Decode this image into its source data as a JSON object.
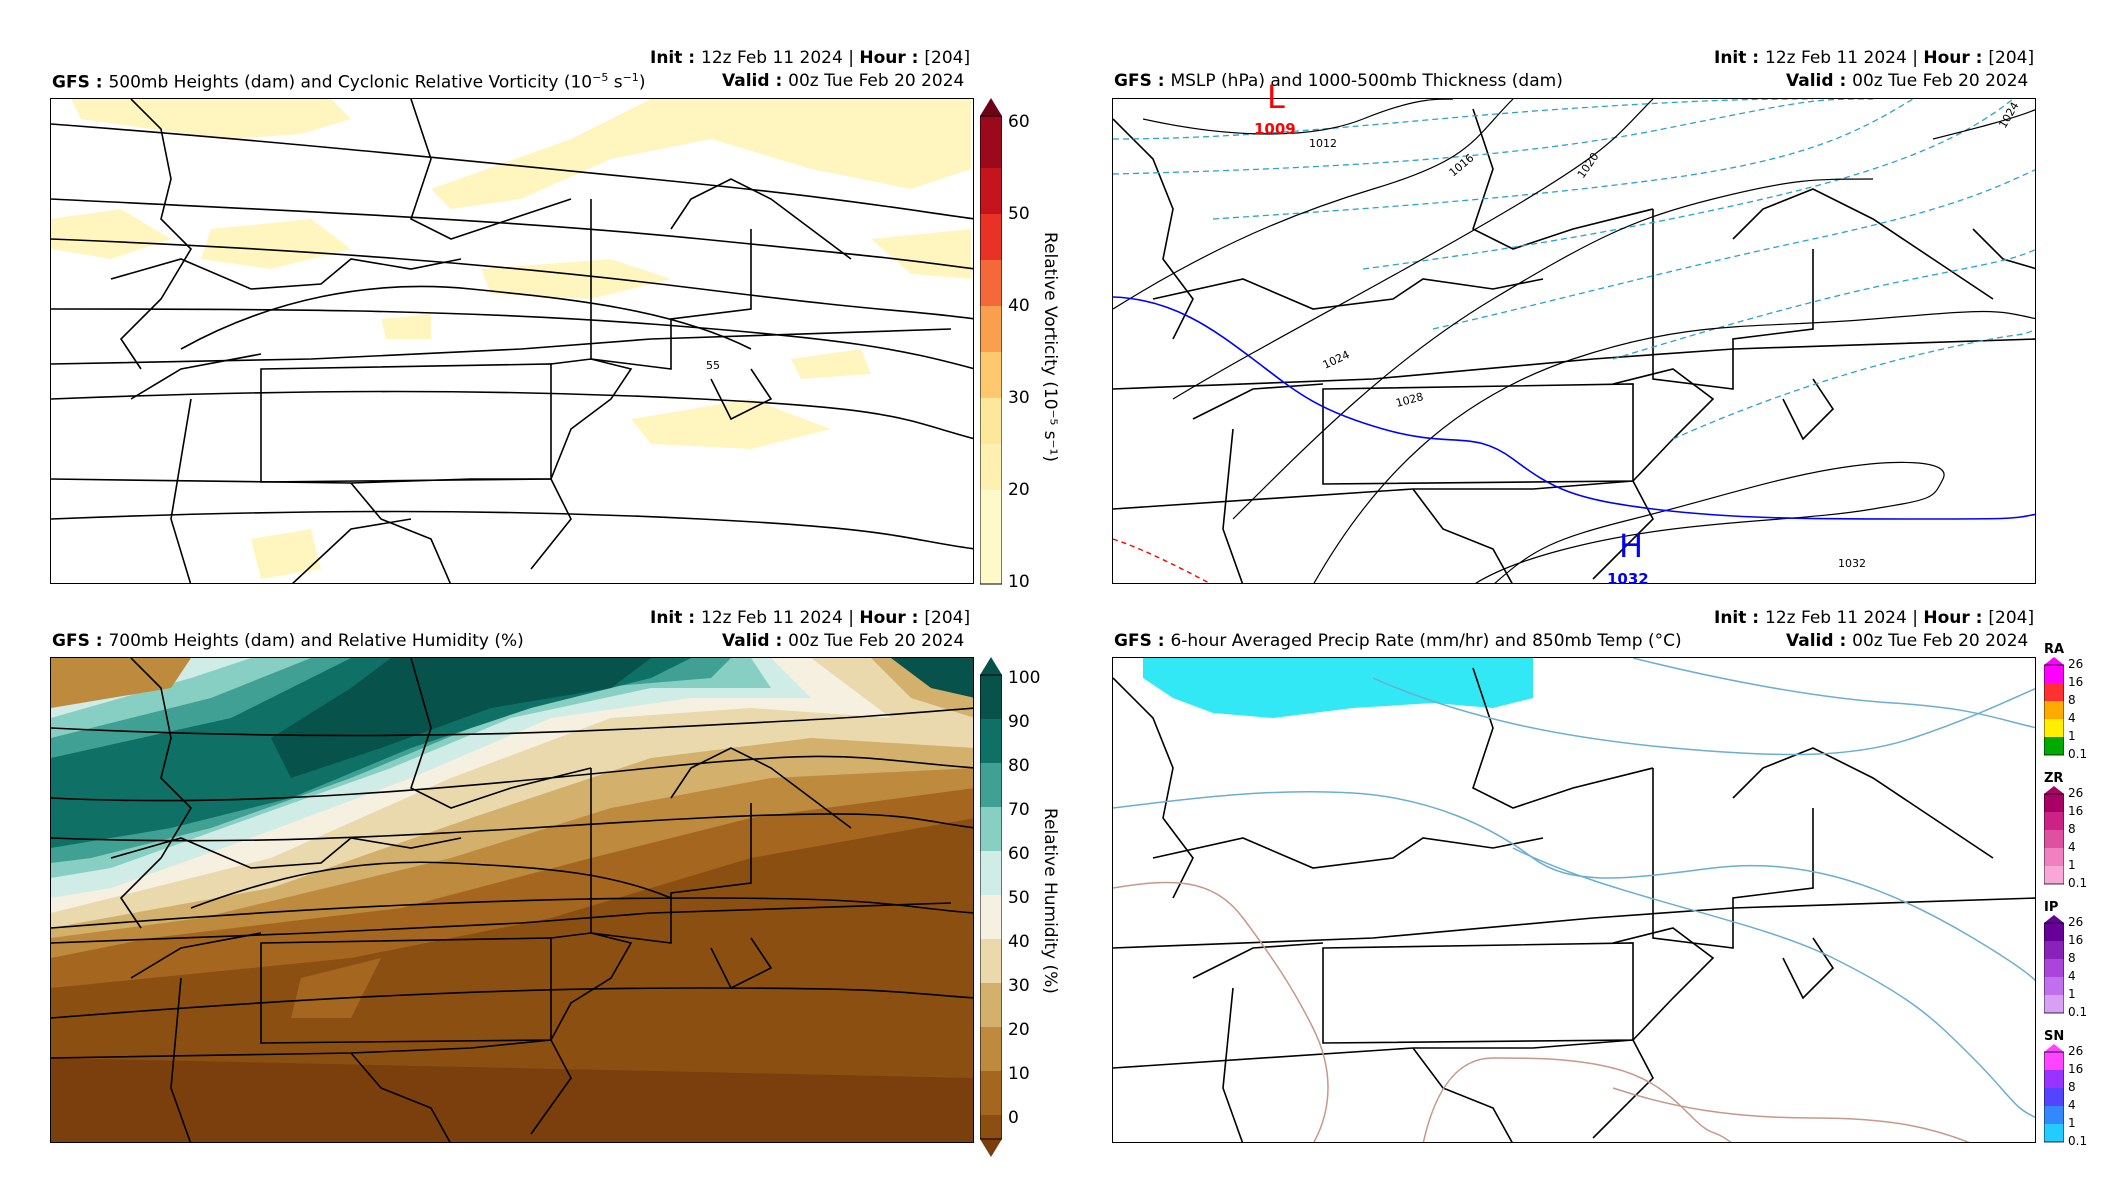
{
  "common": {
    "init_label": "Init",
    "init_value": "12z Feb 11 2024",
    "hour_label": "Hour",
    "hour_value": "[204]",
    "valid_label": "Valid",
    "valid_value": "00z Tue Feb 20 2024",
    "model": "GFS"
  },
  "panels": [
    {
      "title": "500mb Heights (dam) and Cyclonic Relative Vorticity (10",
      "title_sup": "−5",
      "title_tail": " s",
      "title_sup2": "−1",
      "title_end": ")",
      "colorbar_label": "Relative Vorticity (10⁻⁵ s⁻¹)",
      "colorbar_ticks": [
        "60",
        "50",
        "40",
        "30",
        "20",
        "10"
      ],
      "contour_label": "55"
    },
    {
      "title": "MSLP (hPa) and 1000-500mb Thickness (dam)",
      "low_letter": "L",
      "low_value": "1009",
      "high_letter": "H",
      "high_value": "1032",
      "isobar_labels": [
        "1012",
        "1016",
        "1020",
        "1024",
        "1028",
        "1032",
        "1024"
      ]
    },
    {
      "title": "700mb Heights (dam) and Relative Humidity (%)",
      "colorbar_label": "Relative Humidity (%)",
      "colorbar_ticks": [
        "100",
        "90",
        "80",
        "70",
        "60",
        "50",
        "40",
        "30",
        "20",
        "10",
        "0"
      ]
    },
    {
      "title": "6-hour Averaged Precip Rate (mm/hr) and 850mb Temp (°C)",
      "ptypes": [
        {
          "name": "RA",
          "ticks": [
            "26",
            "16",
            "8",
            "4",
            "1",
            "0.1"
          ],
          "colors": [
            "#ff00ff",
            "#ff3030",
            "#ffaa00",
            "#ffee00",
            "#88dd00",
            "#00aa00"
          ]
        },
        {
          "name": "ZR",
          "ticks": [
            "26",
            "16",
            "8",
            "4",
            "1",
            "0.1"
          ],
          "colors": [
            "#aa0066",
            "#cc2288",
            "#e050a0",
            "#f080c0",
            "#f8a8d8",
            "#fcd0e8"
          ]
        },
        {
          "name": "IP",
          "ticks": [
            "26",
            "16",
            "8",
            "4",
            "1",
            "0.1"
          ],
          "colors": [
            "#660099",
            "#8822bb",
            "#aa44dd",
            "#c070ee",
            "#d8a0f4",
            "#ecd0fa"
          ]
        },
        {
          "name": "SN",
          "ticks": [
            "26",
            "16",
            "8",
            "4",
            "1",
            "0.1"
          ],
          "colors": [
            "#ff44ff",
            "#9933ff",
            "#5544ff",
            "#3388ff",
            "#22ccff",
            "#44eeff"
          ]
        }
      ]
    }
  ],
  "colors": {
    "vort_shade": "#fff6bf",
    "vort_scale": [
      "#fef9c8",
      "#fde79a",
      "#fdc86e",
      "#f9a04f",
      "#f4683a",
      "#e83226",
      "#c4141e",
      "#9a0a1c",
      "#6e0316"
    ],
    "rh_dry": "#8c4f12",
    "rh_moist": "#07524a",
    "rh_scale": [
      "#7a3f0c",
      "#8c4f12",
      "#a5671f",
      "#bd8a3e",
      "#d3b06c",
      "#ead9ad",
      "#f5f0e0",
      "#cfece6",
      "#88cfc3",
      "#3fa093",
      "#0f7065",
      "#07524a"
    ],
    "isobar_low": "#ff0000",
    "isobar_high": "#0000ff",
    "thickness_cold": "#2aa5c8",
    "temp_cold": "#6aaed0",
    "temp_warm": "#c8978a",
    "snow_shade": "#33e8f5"
  }
}
